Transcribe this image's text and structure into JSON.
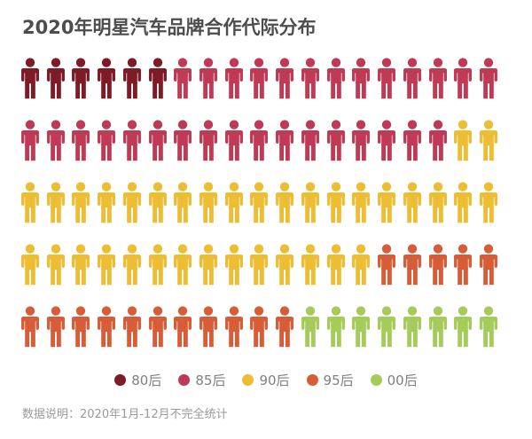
{
  "title": "2020年明星汽车品牌合作代际分布",
  "footer": {
    "text": "数据说明：2020年1月-12月不完全统计"
  },
  "legend": {
    "items": [
      {
        "key": "gen-80s",
        "label": "80后",
        "color": "#7D1B26"
      },
      {
        "key": "gen-85s",
        "label": "85后",
        "color": "#BF3A55"
      },
      {
        "key": "gen-90s",
        "label": "90后",
        "color": "#EDBD33"
      },
      {
        "key": "gen-95s",
        "label": "95后",
        "color": "#D75C37"
      },
      {
        "key": "gen-00s",
        "label": "00后",
        "color": "#A5CB5A"
      }
    ]
  },
  "chart_data": {
    "type": "pictogram",
    "title": "2020年明星汽车品牌合作代际分布",
    "icon": "person",
    "icons_per_row": 19,
    "rows_count": 5,
    "total_icons": 95,
    "categories": [
      "80后",
      "85后",
      "90后",
      "95后",
      "00后"
    ],
    "values": [
      6,
      30,
      35,
      16,
      8
    ],
    "colors": {
      "80后": "#7D1B26",
      "85后": "#BF3A55",
      "90后": "#EDBD33",
      "95后": "#D75C37",
      "00后": "#A5CB5A"
    },
    "rows": [
      [
        {
          "category": "80后",
          "count": 6
        },
        {
          "category": "85后",
          "count": 13
        }
      ],
      [
        {
          "category": "85后",
          "count": 17
        },
        {
          "category": "90后",
          "count": 2
        }
      ],
      [
        {
          "category": "90后",
          "count": 19
        }
      ],
      [
        {
          "category": "90后",
          "count": 14
        },
        {
          "category": "95后",
          "count": 5
        }
      ],
      [
        {
          "category": "95后",
          "count": 11
        },
        {
          "category": "00后",
          "count": 8
        }
      ]
    ],
    "legend_position": "bottom",
    "grid": false,
    "note": "数据说明：2020年1月-12月不完全统计"
  }
}
